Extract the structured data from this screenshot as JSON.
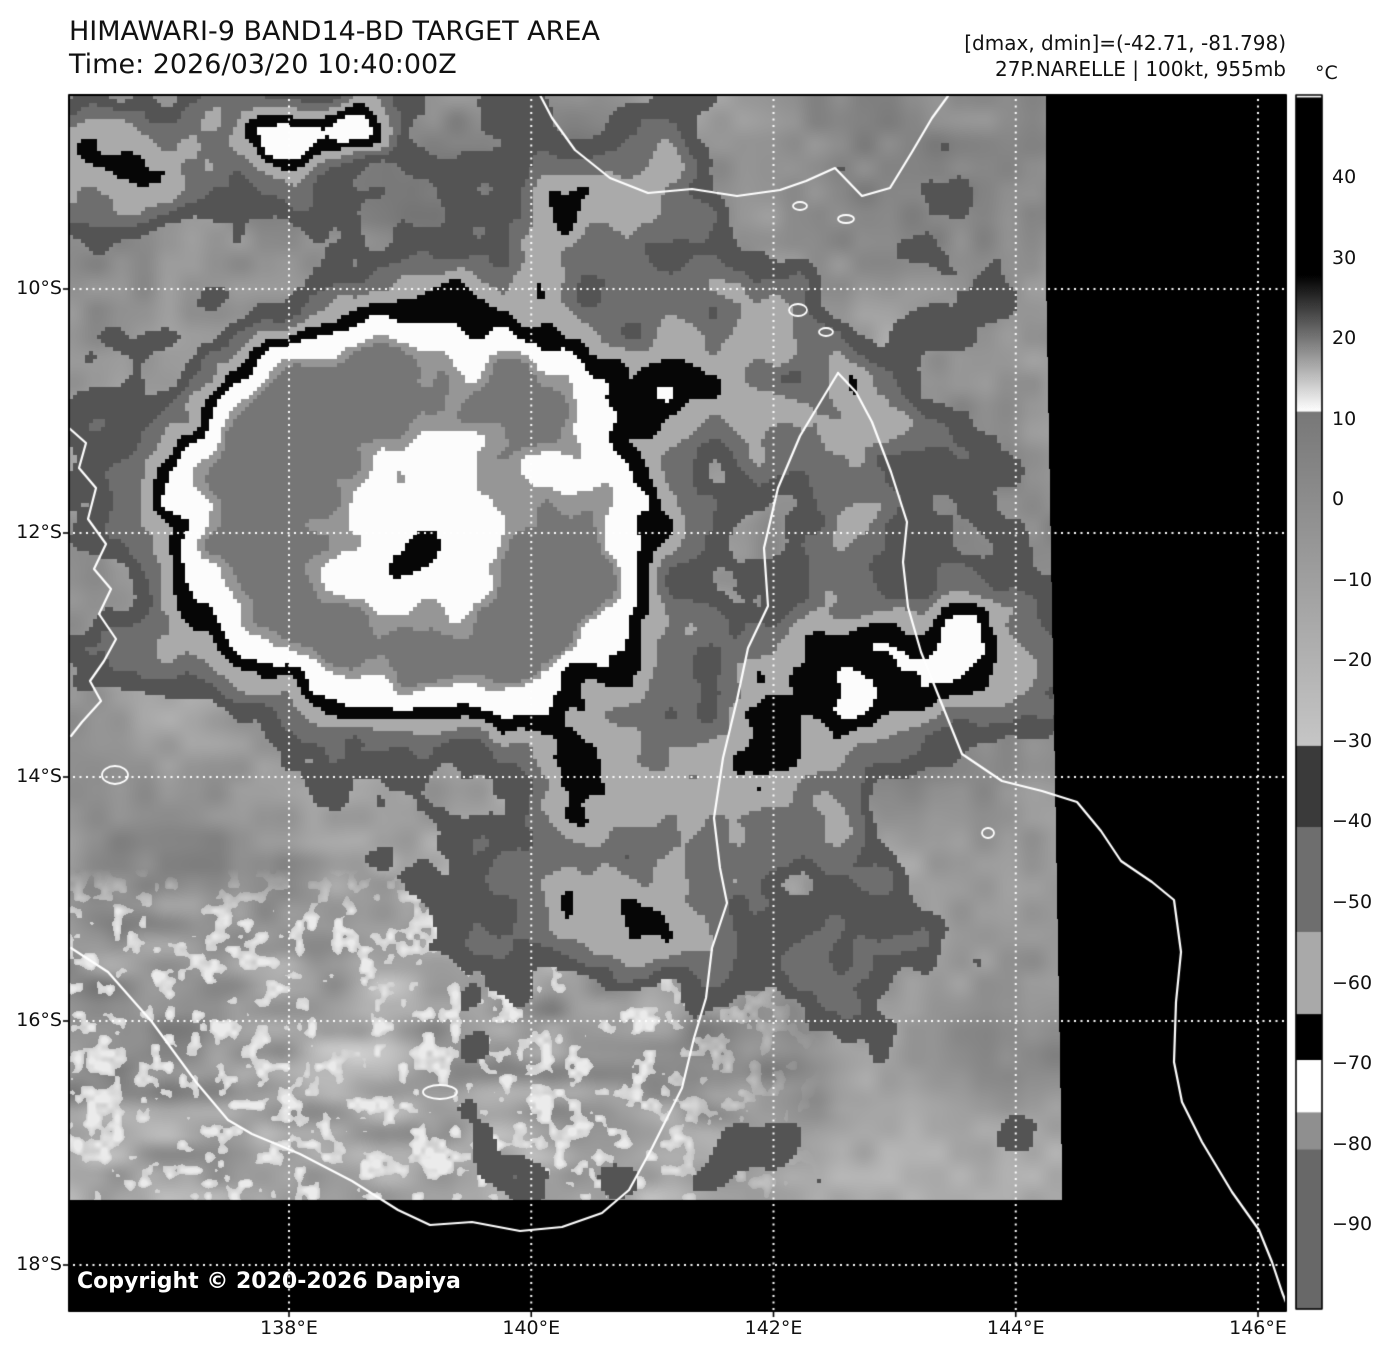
{
  "header": {
    "title": "HIMAWARI-9 BAND14-BD TARGET AREA",
    "time_line": "Time: 2026/03/20 10:40:00Z",
    "range_line": "[dmax, dmin]=(-42.71, -81.798)",
    "storm_line": "27P.NARELLE | 100kt, 955mb"
  },
  "footer": {
    "copyright": "Copyright © 2020-2026 Dapiya"
  },
  "axes": {
    "lat_tick_labels": [
      "10°S",
      "12°S",
      "14°S",
      "16°S",
      "18°S"
    ],
    "lon_tick_labels": [
      "138°E",
      "140°E",
      "142°E",
      "144°E",
      "146°E"
    ]
  },
  "colorbar": {
    "unit": "°C",
    "ticks": [
      {
        "value": 40,
        "label": "40"
      },
      {
        "value": 30,
        "label": "30"
      },
      {
        "value": 20,
        "label": "20"
      },
      {
        "value": 10,
        "label": "10"
      },
      {
        "value": 0,
        "label": "0"
      },
      {
        "value": -10,
        "label": "−10"
      },
      {
        "value": -20,
        "label": "−20"
      },
      {
        "value": -30,
        "label": "−30"
      },
      {
        "value": -40,
        "label": "−40"
      },
      {
        "value": -50,
        "label": "−50"
      },
      {
        "value": -60,
        "label": "−60"
      },
      {
        "value": -70,
        "label": "−70"
      },
      {
        "value": -80,
        "label": "−80"
      },
      {
        "value": -90,
        "label": "−90"
      }
    ],
    "segments": [
      {
        "from": 50.0,
        "to": 28.0,
        "color": "#000000"
      },
      {
        "from": 28.0,
        "to": 11.0,
        "color": "#000000",
        "color2": "#ffffff"
      },
      {
        "from": 11.0,
        "to": -30.5,
        "color": "#787878",
        "color2": "#c6c6c6"
      },
      {
        "from": -30.5,
        "to": -40.6,
        "color": "#3a3a3a"
      },
      {
        "from": -40.6,
        "to": -53.6,
        "color": "#6e6e6e"
      },
      {
        "from": -53.6,
        "to": -63.8,
        "color": "#a9a9a9"
      },
      {
        "from": -63.8,
        "to": -69.5,
        "color": "#000000"
      },
      {
        "from": -69.5,
        "to": -76.0,
        "color": "#ffffff"
      },
      {
        "from": -76.0,
        "to": -80.6,
        "color": "#8f8f8f"
      },
      {
        "from": -80.6,
        "to": -100.4,
        "color": "#686868"
      }
    ]
  },
  "map_colors": {
    "no_data": "#000000",
    "gridline": "#ffffff",
    "coastline": "#ffffff",
    "frame": "#000000"
  }
}
